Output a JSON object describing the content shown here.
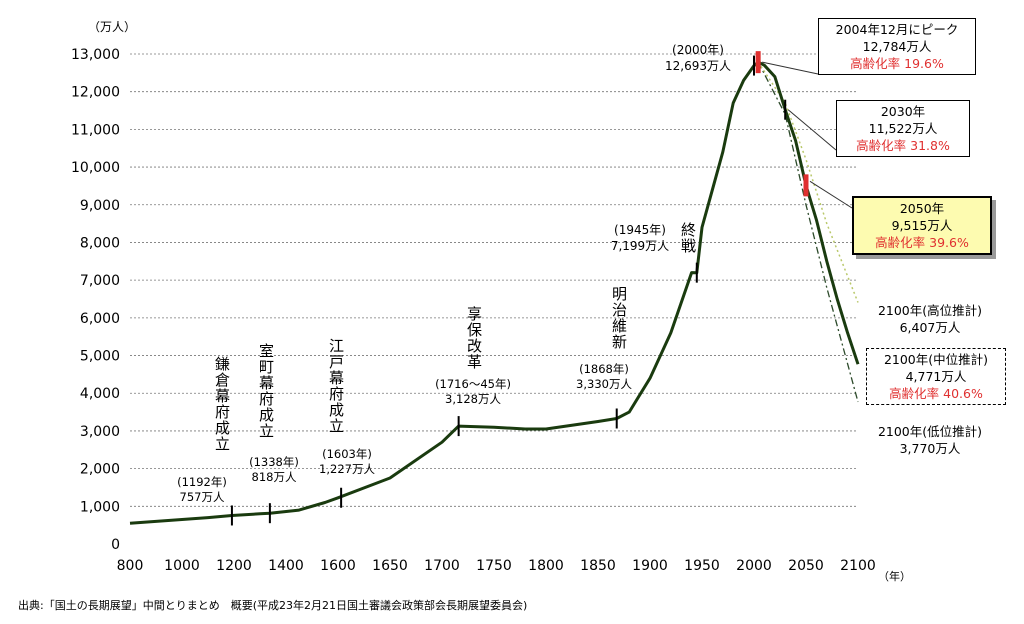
{
  "chart_data": {
    "type": "line",
    "y_unit": "（万人）",
    "x_unit": "（年）",
    "xlim": [
      800,
      2100
    ],
    "ylim": [
      0,
      13000
    ],
    "x_ticks": [
      "800",
      "1000",
      "1200",
      "1400",
      "1600",
      "1650",
      "1700",
      "1750",
      "1800",
      "1850",
      "1900",
      "1950",
      "2000",
      "2050",
      "2100"
    ],
    "y_ticks": [
      "0",
      "1,000",
      "2,000",
      "3,000",
      "4,000",
      "5,000",
      "6,000",
      "7,000",
      "8,000",
      "9,000",
      "10,000",
      "11,000",
      "12,000",
      "13,000"
    ],
    "grid": true,
    "series": [
      {
        "values": [
          [
            800,
            550
          ],
          [
            1000,
            650
          ],
          [
            1100,
            700
          ],
          [
            1192,
            757
          ],
          [
            1300,
            800
          ],
          [
            1338,
            818
          ],
          [
            1450,
            900
          ],
          [
            1550,
            1100
          ],
          [
            1600,
            1227
          ],
          [
            1650,
            1750
          ],
          [
            1700,
            2700
          ],
          [
            1716,
            3128
          ],
          [
            1750,
            3100
          ],
          [
            1780,
            3050
          ],
          [
            1800,
            3050
          ],
          [
            1850,
            3250
          ],
          [
            1868,
            3330
          ],
          [
            1880,
            3500
          ],
          [
            1900,
            4400
          ],
          [
            1920,
            5600
          ],
          [
            1940,
            7200
          ],
          [
            1945,
            7199
          ],
          [
            1950,
            8400
          ],
          [
            1960,
            9400
          ],
          [
            1970,
            10400
          ],
          [
            1980,
            11700
          ],
          [
            1990,
            12300
          ],
          [
            2000,
            12693
          ],
          [
            2004,
            12784
          ],
          [
            2010,
            12700
          ],
          [
            2020,
            12400
          ],
          [
            2030,
            11522
          ],
          [
            2040,
            10700
          ],
          [
            2050,
            9515
          ],
          [
            2060,
            8600
          ],
          [
            2070,
            7500
          ],
          [
            2080,
            6500
          ],
          [
            2090,
            5600
          ],
          [
            2100,
            4771
          ]
        ]
      },
      {
        "values": [
          [
            2004,
            12784
          ],
          [
            2030,
            11700
          ],
          [
            2050,
            10200
          ],
          [
            2070,
            8500
          ],
          [
            2100,
            6407
          ]
        ]
      },
      {
        "values": [
          [
            2004,
            12784
          ],
          [
            2030,
            11400
          ],
          [
            2050,
            9000
          ],
          [
            2070,
            6800
          ],
          [
            2100,
            3770
          ]
        ]
      }
    ],
    "markers": [
      {
        "x": 1192,
        "y": 757
      },
      {
        "x": 1338,
        "y": 818
      },
      {
        "x": 1603,
        "y": 1227
      },
      {
        "x": 1716,
        "y": 3128
      },
      {
        "x": 1868,
        "y": 3330
      },
      {
        "x": 1945,
        "y": 7199
      },
      {
        "x": 2000,
        "y": 12693
      },
      {
        "x": 2030,
        "y": 11522
      }
    ],
    "red_markers": [
      {
        "x": 2004,
        "y": 12784
      },
      {
        "x": 2050,
        "y": 9515
      }
    ],
    "colors": {
      "main": "#1a3b0f",
      "high": "#b9c86a",
      "low": "#2c4a2a",
      "red": "#e03030",
      "highlight": "#fdfbb0",
      "grid": "#777777"
    }
  },
  "events": {
    "kamakura": "鎌倉幕府成立",
    "muromachi": "室町幕府成立",
    "edo": "江戸幕府成立",
    "kyoho": "享保改革",
    "meiji": "明治維新",
    "shusen": "終戦"
  },
  "points": {
    "p1192": {
      "year": "(1192年)",
      "pop": "757万人"
    },
    "p1338": {
      "year": "(1338年)",
      "pop": "818万人"
    },
    "p1603": {
      "year": "(1603年)",
      "pop": "1,227万人"
    },
    "p1716": {
      "year": "(1716～45年)",
      "pop": "3,128万人"
    },
    "p1868": {
      "year": "(1868年)",
      "pop": "3,330万人"
    },
    "p1945": {
      "year": "(1945年)",
      "pop": "7,199万人"
    },
    "p2000": {
      "year": "(2000年)",
      "pop": "12,693万人"
    }
  },
  "callouts": {
    "peak": {
      "title": "2004年12月にピーク",
      "pop": "12,784万人",
      "aging": "高齢化率 19.6%"
    },
    "y2030": {
      "title": "2030年",
      "pop": "11,522万人",
      "aging": "高齢化率 31.8%"
    },
    "y2050": {
      "title": "2050年",
      "pop": "9,515万人",
      "aging": "高齢化率 39.6%"
    },
    "high": {
      "title": "2100年(高位推計)",
      "pop": "6,407万人"
    },
    "mid": {
      "title": "2100年(中位推計)",
      "pop": "4,771万人",
      "aging": "高齢化率 40.6%"
    },
    "low": {
      "title": "2100年(低位推計)",
      "pop": "3,770万人"
    }
  },
  "source": "出典:「国土の長期展望」中間とりまとめ　概要(平成23年2月21日国土審議会政策部会長期展望委員会)"
}
